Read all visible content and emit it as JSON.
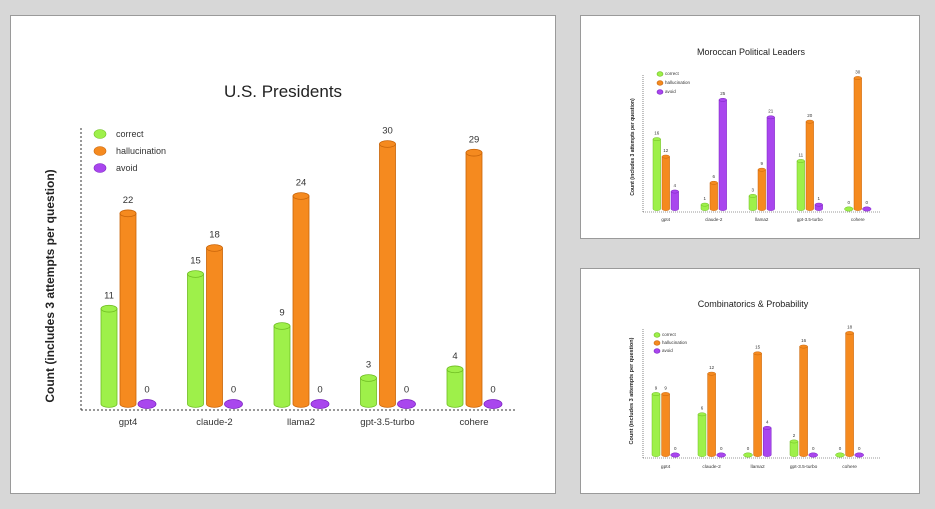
{
  "colors": {
    "correct": "#9ef04a",
    "correct_edge": "#6fbd22",
    "hallucination": "#f58a1f",
    "hallucination_edge": "#c9650a",
    "avoid": "#a946ee",
    "avoid_edge": "#7b22c2",
    "axis": "#333333",
    "text": "#333333"
  },
  "chart_data": [
    {
      "type": "bar",
      "title": "U.S. Presidents",
      "ylabel": "Count (includes 3 attempts per question)",
      "xlabel": "",
      "categories": [
        "gpt4",
        "claude-2",
        "llama2",
        "gpt-3.5-turbo",
        "cohere"
      ],
      "series": [
        {
          "name": "correct",
          "values": [
            11,
            15,
            9,
            3,
            4
          ]
        },
        {
          "name": "hallucination",
          "values": [
            22,
            18,
            24,
            30,
            29
          ]
        },
        {
          "name": "avoid",
          "values": [
            0,
            0,
            0,
            0,
            0
          ]
        }
      ],
      "ylim": [
        0,
        30
      ],
      "legend": "top-left"
    },
    {
      "type": "bar",
      "title": "Moroccan Political Leaders",
      "ylabel": "Count (includes 3 attempts per question)",
      "xlabel": "",
      "categories": [
        "gpt4",
        "claude-2",
        "llama2",
        "gpt-3.5-turbo",
        "cohere"
      ],
      "series": [
        {
          "name": "correct",
          "values": [
            16,
            1,
            3,
            11,
            0
          ]
        },
        {
          "name": "hallucination",
          "values": [
            12,
            6,
            9,
            20,
            30
          ]
        },
        {
          "name": "avoid",
          "values": [
            4,
            25,
            21,
            1,
            0
          ]
        }
      ],
      "ylim": [
        0,
        30
      ],
      "legend": "top-left"
    },
    {
      "type": "bar",
      "title": "Combinatorics & Probability",
      "ylabel": "Count (includes 3 attempts per question)",
      "xlabel": "",
      "categories": [
        "gpt4",
        "claude-2",
        "llama2",
        "gpt-3.5-turbo",
        "cohere"
      ],
      "series": [
        {
          "name": "correct",
          "values": [
            9,
            6,
            0,
            2,
            0
          ]
        },
        {
          "name": "hallucination",
          "values": [
            9,
            12,
            15,
            16,
            18
          ]
        },
        {
          "name": "avoid",
          "values": [
            0,
            0,
            4,
            0,
            0
          ]
        }
      ],
      "ylim": [
        0,
        18
      ],
      "legend": "top-left"
    }
  ]
}
